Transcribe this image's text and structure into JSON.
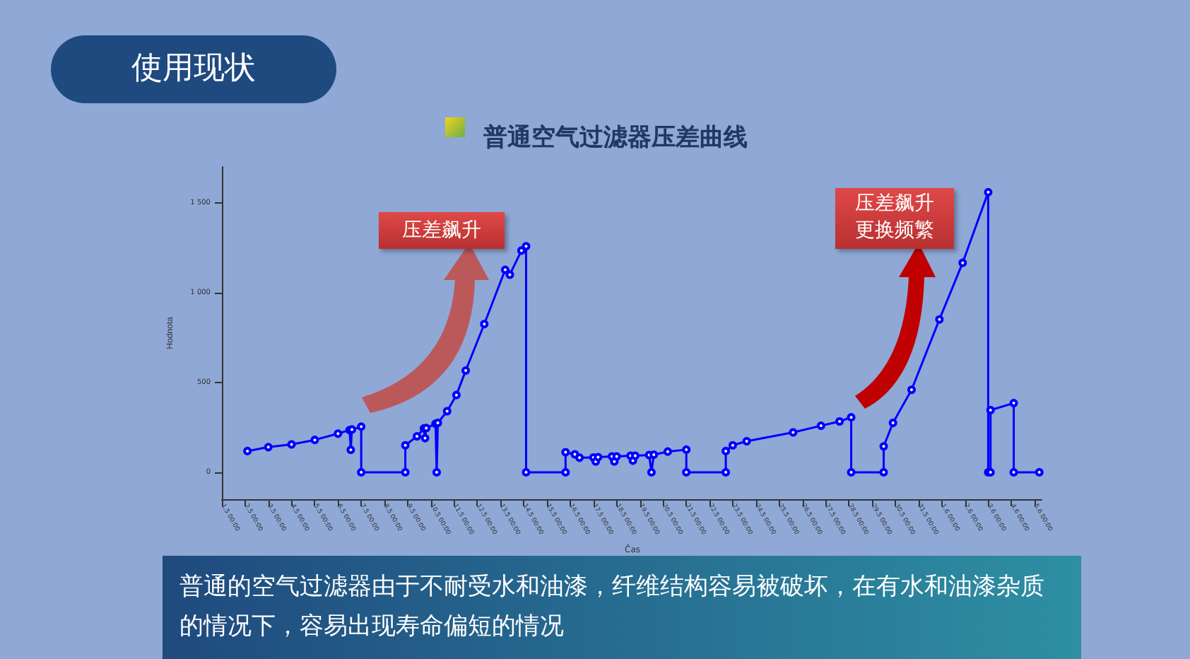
{
  "chart_data": {
    "type": "line",
    "title": "普通空气过滤器压差曲线",
    "xlabel": "Čas",
    "ylabel": "Hodnota",
    "annotations": [
      "使用现状",
      "压差飙升",
      "压差飙升更换频繁",
      "普通的空气过滤器由于不耐受水和油漆，纤维结构容易被破坏，在有水和油漆杂质的情况下，容易出现寿命偏短的情况"
    ],
    "series": [
      {
        "color": "#0000ff",
        "x": [
          "--05-02T02:24",
          "--05-03",
          "--05-04",
          "--05-05",
          "--05-06",
          "--05-06T12:00",
          "--05-06T13:12",
          "--05-06T14:24",
          "--05-07",
          "--05-07",
          "--05-08T21:36",
          "--05-08T21:36",
          "--05-09T09:36",
          "--05-09T16:48",
          "--05-09T18:00",
          "--05-09T19:12",
          "--05-10T04:48",
          "--05-10T06:00",
          "--05-10T07:12",
          "--05-10T16:48",
          "--05-11T02:24",
          "--05-11T12:00",
          "--05-12T07:12",
          "--05-13T04:48",
          "--05-13T09:36",
          "--05-13T21:36",
          "--05-14T02:24",
          "--05-14T02:24",
          "--05-15T19:12",
          "--05-15T19:12",
          "--05-16T04:48",
          "--05-16T09:36",
          "--05-17",
          "--05-17T02:24",
          "--05-17T04:48",
          "--05-17T19:12",
          "--05-17T21:36",
          "--05-18",
          "--05-18T14:24",
          "--05-18T16:48",
          "--05-18T19:12",
          "--05-19T09:36",
          "--05-19T12:00",
          "--05-19T14:24",
          "--05-20T04:48",
          "--05-21",
          "--05-21",
          "--05-22T16:48",
          "--05-22T16:48",
          "--05-23",
          "--05-23T14:24",
          "--05-25T14:24",
          "--05-26T19:12",
          "--05-27T14:24",
          "--05-28T02:24",
          "--05-28T02:24",
          "--05-29T12:00",
          "--05-29T12:00",
          "--05-29T21:36",
          "--05-30T16:48",
          "--05-31T21:36",
          "--06-01T21:36",
          "--06-03",
          "--06-03",
          "--06-03T02:24",
          "--06-03T02:24",
          "--06-04T02:24",
          "--06-04T02:24",
          "--06-05T04:48"
        ],
        "values": [
          118,
          140,
          155,
          180,
          215,
          235,
          125,
          238,
          254,
          0,
          0,
          150,
          200,
          244,
          190,
          246,
          270,
          0,
          275,
          340,
          430,
          566,
          825,
          1127,
          1100,
          1234,
          1258,
          0,
          0,
          112,
          100,
          81,
          82,
          60,
          84,
          88,
          60,
          88,
          92,
          65,
          92,
          96,
          0,
          98,
          115,
          126,
          0,
          0,
          118,
          150,
          173,
          222,
          259,
          283,
          306,
          0,
          0,
          144,
          275,
          459,
          851,
          1166,
          1559,
          0,
          0,
          346,
          385,
          0,
          0
        ]
      }
    ],
    "xlim": [
      "--05-01",
      "--06-05T07:12"
    ],
    "xticks": [
      {
        "value": "--05-01",
        "label": "1.5 00:00"
      },
      {
        "value": "--05-02",
        "label": "2.5 00:00"
      },
      {
        "value": "--05-03",
        "label": "3.5 00:00"
      },
      {
        "value": "--05-04",
        "label": "4.5 00:00"
      },
      {
        "value": "--05-05",
        "label": "5.5 00:00"
      },
      {
        "value": "--05-06",
        "label": "6.5 00:00"
      },
      {
        "value": "--05-07",
        "label": "7.5 00:00"
      },
      {
        "value": "--05-08",
        "label": "8.5 00:00"
      },
      {
        "value": "--05-09",
        "label": "9.5 00:00"
      },
      {
        "value": "--05-10",
        "label": "10.5 00:00"
      },
      {
        "value": "--05-11",
        "label": "11.5 00:00"
      },
      {
        "value": "--05-12",
        "label": "12.5 00:00"
      },
      {
        "value": "--05-13",
        "label": "13.5 00:00"
      },
      {
        "value": "--05-14",
        "label": "14.5 00:00"
      },
      {
        "value": "--05-15",
        "label": "15.5 00:00"
      },
      {
        "value": "--05-16",
        "label": "16.5 00:00"
      },
      {
        "value": "--05-17",
        "label": "17.5 00:00"
      },
      {
        "value": "--05-18",
        "label": "18.5 00:00"
      },
      {
        "value": "--05-19",
        "label": "19.5 00:00"
      },
      {
        "value": "--05-20",
        "label": "20.5 00:00"
      },
      {
        "value": "--05-21",
        "label": "21.5 00:00"
      },
      {
        "value": "--05-22",
        "label": "22.5 00:00"
      },
      {
        "value": "--05-23",
        "label": "23.5 00:00"
      },
      {
        "value": "--05-24",
        "label": "24.5 00:00"
      },
      {
        "value": "--05-25",
        "label": "25.5 00:00"
      },
      {
        "value": "--05-26",
        "label": "26.5 00:00"
      },
      {
        "value": "--05-27",
        "label": "27.5 00:00"
      },
      {
        "value": "--05-28",
        "label": "28.5 00:00"
      },
      {
        "value": "--05-29",
        "label": "29.5 00:00"
      },
      {
        "value": "--05-30",
        "label": "30.5 00:00"
      },
      {
        "value": "--05-31",
        "label": "31.5 00:00"
      },
      {
        "value": "--06-01",
        "label": "1.6 00:00"
      },
      {
        "value": "--06-02",
        "label": "2.6 00:00"
      },
      {
        "value": "--06-03",
        "label": "3.6 00:00"
      },
      {
        "value": "--06-04",
        "label": "4.6 00:00"
      },
      {
        "value": "--06-05",
        "label": "5.6 00:00"
      }
    ],
    "ylim": [
      -150,
      1700
    ],
    "yticks": [
      0,
      500,
      {
        "value": 1000,
        "label": "1 000"
      },
      {
        "value": 1500,
        "label": "1 500"
      }
    ],
    "grid": false,
    "marker": "circle",
    "line_style": "solid"
  }
}
